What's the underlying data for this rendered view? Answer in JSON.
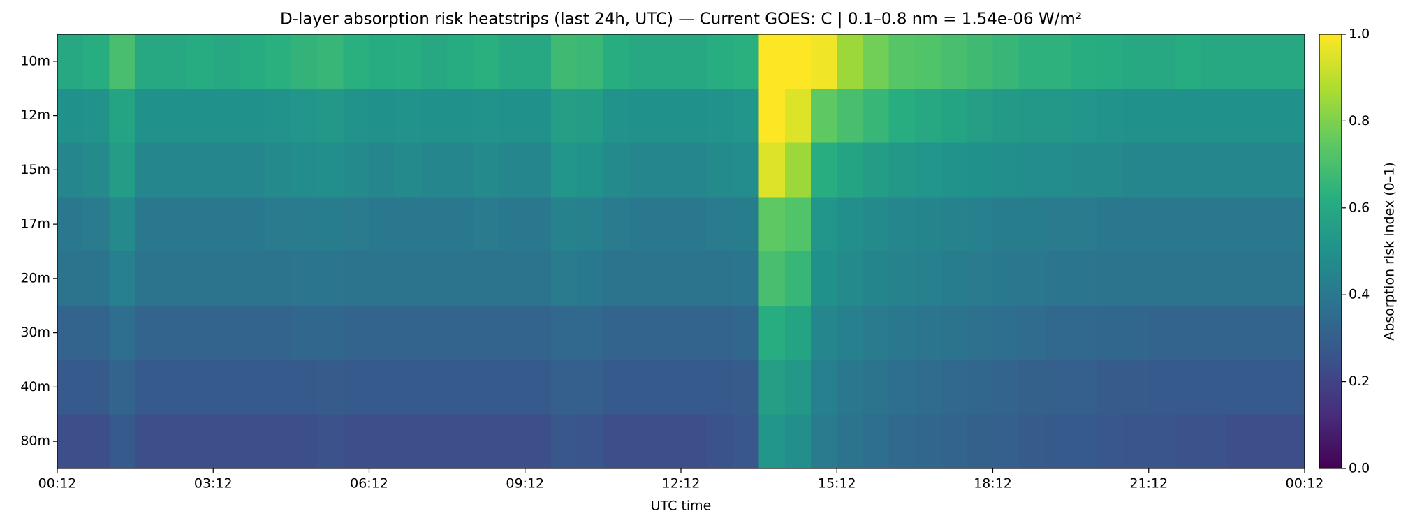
{
  "chart_data": {
    "type": "heatmap",
    "title": "D-layer absorption risk heatstrips (last 24h, UTC) — Current GOES: C  |  0.1–0.8 nm = 1.54e-06 W/m²",
    "xlabel": "UTC time",
    "colorbar_label": "Absorption risk index (0–1)",
    "colormap": "viridis",
    "clim": [
      0,
      1
    ],
    "cticks": [
      {
        "value": 0,
        "label": "0.0"
      },
      {
        "value": 0.2,
        "label": "0.2"
      },
      {
        "value": 0.4,
        "label": "0.4"
      },
      {
        "value": 0.6,
        "label": "0.6"
      },
      {
        "value": 0.8,
        "label": "0.8"
      },
      {
        "value": 1,
        "label": "1.0"
      }
    ],
    "xlim": [
      0,
      24
    ],
    "xticks": [
      {
        "value": 0,
        "label": "00:12"
      },
      {
        "value": 3,
        "label": "03:12"
      },
      {
        "value": 6,
        "label": "06:12"
      },
      {
        "value": 9,
        "label": "09:12"
      },
      {
        "value": 12,
        "label": "12:12"
      },
      {
        "value": 15,
        "label": "15:12"
      },
      {
        "value": 18,
        "label": "18:12"
      },
      {
        "value": 21,
        "label": "21:12"
      },
      {
        "value": 24,
        "label": "00:12"
      }
    ],
    "x": [
      0.25,
      0.75,
      1.25,
      1.75,
      2.25,
      2.75,
      3.25,
      3.75,
      4.25,
      4.75,
      5.25,
      5.75,
      6.25,
      6.75,
      7.25,
      7.75,
      8.25,
      8.75,
      9.25,
      9.75,
      10.25,
      10.75,
      11.25,
      11.75,
      12.25,
      12.75,
      13.25,
      13.75,
      14.25,
      14.75,
      15.25,
      15.75,
      16.25,
      16.75,
      17.25,
      17.75,
      18.25,
      18.75,
      19.25,
      19.75,
      20.25,
      20.75,
      21.25,
      21.75,
      22.25,
      22.75,
      23.25,
      23.75
    ],
    "categories": [
      "10m",
      "12m",
      "15m",
      "17m",
      "20m",
      "30m",
      "40m",
      "80m"
    ],
    "values": [
      [
        0.6,
        0.62,
        0.7,
        0.6,
        0.6,
        0.61,
        0.6,
        0.61,
        0.63,
        0.65,
        0.66,
        0.63,
        0.61,
        0.62,
        0.6,
        0.61,
        0.63,
        0.6,
        0.6,
        0.68,
        0.67,
        0.62,
        0.6,
        0.6,
        0.6,
        0.62,
        0.63,
        1.0,
        1.0,
        0.98,
        0.85,
        0.78,
        0.73,
        0.72,
        0.7,
        0.68,
        0.66,
        0.64,
        0.64,
        0.62,
        0.61,
        0.6,
        0.6,
        0.61,
        0.6,
        0.6,
        0.6,
        0.6
      ],
      [
        0.5,
        0.51,
        0.58,
        0.5,
        0.5,
        0.5,
        0.5,
        0.5,
        0.51,
        0.52,
        0.53,
        0.51,
        0.5,
        0.51,
        0.5,
        0.5,
        0.51,
        0.5,
        0.5,
        0.56,
        0.55,
        0.51,
        0.5,
        0.5,
        0.5,
        0.51,
        0.52,
        1.0,
        0.95,
        0.75,
        0.7,
        0.66,
        0.62,
        0.6,
        0.58,
        0.56,
        0.54,
        0.53,
        0.53,
        0.52,
        0.51,
        0.5,
        0.5,
        0.5,
        0.5,
        0.5,
        0.5,
        0.5
      ],
      [
        0.46,
        0.47,
        0.55,
        0.46,
        0.46,
        0.46,
        0.46,
        0.46,
        0.47,
        0.48,
        0.49,
        0.47,
        0.46,
        0.47,
        0.46,
        0.46,
        0.47,
        0.46,
        0.46,
        0.52,
        0.51,
        0.47,
        0.46,
        0.46,
        0.46,
        0.47,
        0.48,
        0.95,
        0.85,
        0.62,
        0.58,
        0.55,
        0.53,
        0.52,
        0.51,
        0.5,
        0.49,
        0.48,
        0.48,
        0.47,
        0.47,
        0.46,
        0.46,
        0.46,
        0.46,
        0.46,
        0.46,
        0.46
      ],
      [
        0.4,
        0.41,
        0.47,
        0.4,
        0.4,
        0.4,
        0.4,
        0.4,
        0.41,
        0.41,
        0.42,
        0.41,
        0.4,
        0.4,
        0.4,
        0.4,
        0.41,
        0.4,
        0.4,
        0.44,
        0.43,
        0.41,
        0.4,
        0.4,
        0.4,
        0.41,
        0.42,
        0.75,
        0.72,
        0.52,
        0.49,
        0.47,
        0.46,
        0.45,
        0.44,
        0.43,
        0.42,
        0.42,
        0.41,
        0.41,
        0.4,
        0.4,
        0.4,
        0.4,
        0.4,
        0.4,
        0.4,
        0.4
      ],
      [
        0.38,
        0.38,
        0.43,
        0.38,
        0.38,
        0.38,
        0.38,
        0.38,
        0.38,
        0.39,
        0.39,
        0.38,
        0.38,
        0.38,
        0.38,
        0.38,
        0.38,
        0.38,
        0.38,
        0.41,
        0.4,
        0.38,
        0.38,
        0.38,
        0.38,
        0.38,
        0.39,
        0.7,
        0.66,
        0.5,
        0.47,
        0.45,
        0.44,
        0.43,
        0.42,
        0.41,
        0.4,
        0.4,
        0.39,
        0.39,
        0.38,
        0.38,
        0.38,
        0.38,
        0.38,
        0.38,
        0.38,
        0.38
      ],
      [
        0.32,
        0.32,
        0.36,
        0.32,
        0.32,
        0.32,
        0.32,
        0.32,
        0.32,
        0.33,
        0.33,
        0.32,
        0.32,
        0.32,
        0.32,
        0.32,
        0.32,
        0.32,
        0.32,
        0.34,
        0.34,
        0.32,
        0.32,
        0.32,
        0.32,
        0.32,
        0.33,
        0.62,
        0.58,
        0.46,
        0.43,
        0.41,
        0.4,
        0.39,
        0.38,
        0.37,
        0.36,
        0.35,
        0.34,
        0.34,
        0.33,
        0.33,
        0.32,
        0.32,
        0.32,
        0.32,
        0.32,
        0.32
      ],
      [
        0.28,
        0.28,
        0.32,
        0.28,
        0.28,
        0.28,
        0.28,
        0.28,
        0.28,
        0.28,
        0.29,
        0.28,
        0.28,
        0.28,
        0.28,
        0.28,
        0.28,
        0.28,
        0.28,
        0.3,
        0.3,
        0.28,
        0.28,
        0.28,
        0.28,
        0.28,
        0.29,
        0.56,
        0.53,
        0.43,
        0.4,
        0.38,
        0.36,
        0.35,
        0.34,
        0.33,
        0.32,
        0.31,
        0.3,
        0.3,
        0.29,
        0.29,
        0.28,
        0.28,
        0.28,
        0.28,
        0.28,
        0.28
      ],
      [
        0.24,
        0.24,
        0.28,
        0.24,
        0.24,
        0.24,
        0.24,
        0.24,
        0.24,
        0.24,
        0.25,
        0.24,
        0.24,
        0.24,
        0.24,
        0.24,
        0.24,
        0.24,
        0.24,
        0.27,
        0.26,
        0.24,
        0.24,
        0.24,
        0.24,
        0.25,
        0.27,
        0.52,
        0.49,
        0.41,
        0.38,
        0.36,
        0.34,
        0.33,
        0.32,
        0.31,
        0.3,
        0.29,
        0.28,
        0.28,
        0.27,
        0.26,
        0.26,
        0.25,
        0.25,
        0.24,
        0.24,
        0.24
      ]
    ]
  }
}
